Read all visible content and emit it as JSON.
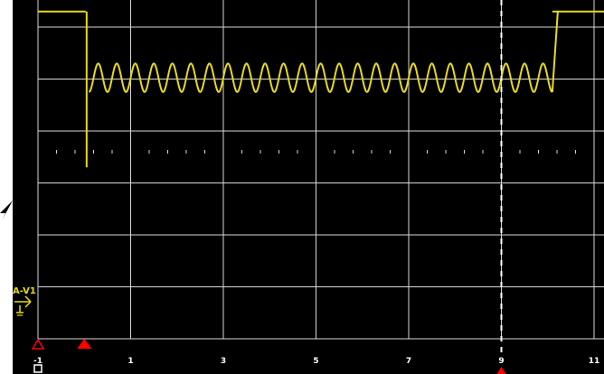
{
  "colors": {
    "background": "#000000",
    "grid": "#d8d8d8",
    "trace": "#e8d81c",
    "channel_label": "#e8d81c",
    "trigger_marker": "#ff0000",
    "axis_text": "#ffffff"
  },
  "channel": {
    "label": "A-V1",
    "icon": "ground-reference-icon"
  },
  "x_axis": {
    "tick_labels": [
      "-1",
      "1",
      "3",
      "5",
      "7",
      "9",
      "11"
    ],
    "tick_values": [
      -1,
      1,
      3,
      5,
      7,
      9,
      11
    ],
    "range": [
      -1,
      11
    ]
  },
  "markers": {
    "time_cursor_x": 9,
    "trigger_x": 0,
    "trigger_icon": "trigger-triangle-icon"
  },
  "chart_data": {
    "type": "line",
    "x_range": [
      -1,
      11
    ],
    "y_range": [
      0,
      7
    ],
    "grid": true,
    "series": [
      {
        "segments": [
          {
            "kind": "level",
            "x_start": -1,
            "x_end": 0.03,
            "y": 6.3
          },
          {
            "kind": "spike",
            "x": 0.05,
            "y_min": 3.3,
            "y_max": 6.3
          },
          {
            "kind": "sine",
            "x_start": 0.1,
            "x_end": 10.1,
            "y_low": 4.75,
            "y_high": 5.3,
            "cycles": 25
          },
          {
            "kind": "rise",
            "x": 10.1,
            "y_from": 4.75,
            "y_to": 6.3
          },
          {
            "kind": "level",
            "x_start": 10.1,
            "x_end": 11.6,
            "y": 6.3
          }
        ]
      }
    ]
  }
}
